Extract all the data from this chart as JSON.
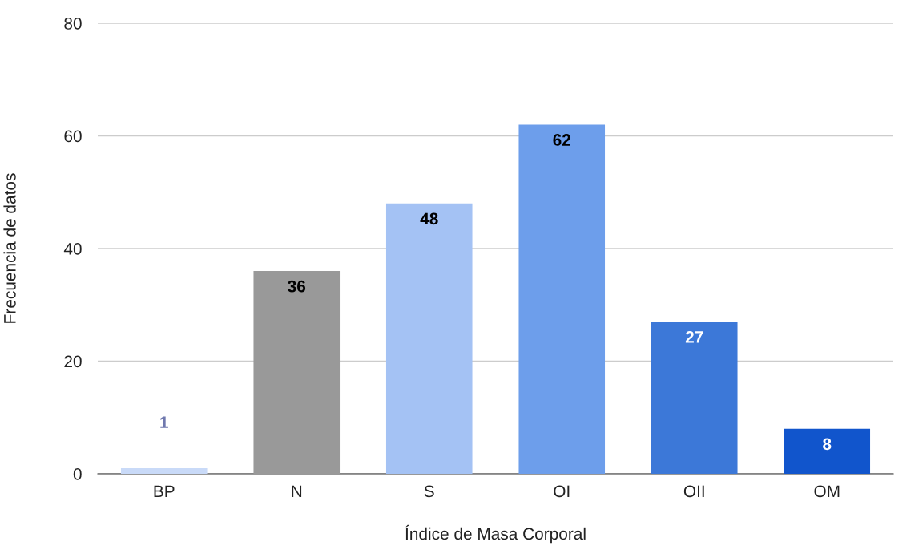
{
  "chart_data": {
    "type": "bar",
    "xlabel": "Índice de Masa Corporal",
    "ylabel": "Frecuencia de datos",
    "categories": [
      "BP",
      "N",
      "S",
      "OI",
      "OII",
      "OM"
    ],
    "values": [
      1,
      36,
      48,
      62,
      27,
      8
    ],
    "colors": [
      "#c9daf8",
      "#999999",
      "#a4c2f4",
      "#6d9eeb",
      "#3c78d8",
      "#1155cc"
    ],
    "ylim": [
      0,
      80
    ],
    "yticks": [
      0,
      20,
      40,
      60,
      80
    ],
    "grid": "y",
    "data_labels": true,
    "legend": false
  }
}
